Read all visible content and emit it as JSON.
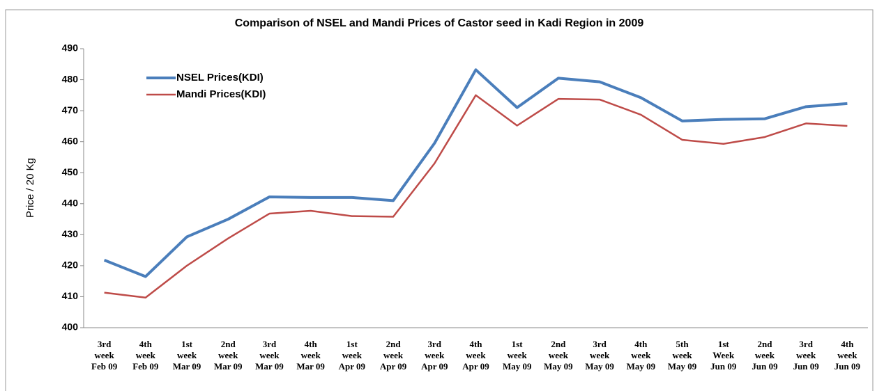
{
  "chart_data": {
    "type": "line",
    "title": "Comparison of NSEL and Mandi Prices of Castor seed in Kadi Region in 2009",
    "ylabel": "Price / 20 Kg",
    "categories": [
      [
        "3rd",
        "week",
        "Feb 09"
      ],
      [
        "4th",
        "week",
        "Feb 09"
      ],
      [
        "1st",
        "week",
        "Mar 09"
      ],
      [
        "2nd",
        "week",
        "Mar 09"
      ],
      [
        "3rd",
        "week",
        "Mar 09"
      ],
      [
        "4th",
        "week",
        "Mar 09"
      ],
      [
        "1st",
        "week",
        "Apr 09"
      ],
      [
        "2nd",
        "week",
        "Apr 09"
      ],
      [
        "3rd",
        "week",
        "Apr 09"
      ],
      [
        "4th",
        "week",
        "Apr 09"
      ],
      [
        "1st",
        "week",
        "May 09"
      ],
      [
        "2nd",
        "week",
        "May 09"
      ],
      [
        "3rd",
        "week",
        "May 09"
      ],
      [
        "4th",
        "week",
        "May 09"
      ],
      [
        "5th",
        "week",
        "May 09"
      ],
      [
        "1st",
        "Week",
        "Jun 09"
      ],
      [
        "2nd",
        "week",
        "Jun 09"
      ],
      [
        "3rd",
        "week",
        "Jun 09"
      ],
      [
        "4th",
        "week",
        "Jun 09"
      ]
    ],
    "series": [
      {
        "name": "NSEL Prices(KDI)",
        "color": "#4a7ebb",
        "values": [
          421.8,
          416.5,
          429.3,
          435,
          442.2,
          442,
          442,
          441,
          459.5,
          483.2,
          471,
          480.5,
          479.3,
          474.2,
          466.7,
          467.2,
          467.4,
          471.3,
          472.3
        ]
      },
      {
        "name": "Mandi Prices(KDI)",
        "color": "#be4b48",
        "values": [
          411.3,
          409.7,
          420,
          428.8,
          436.8,
          437.7,
          436,
          435.8,
          453,
          475,
          465.2,
          473.8,
          473.6,
          468.7,
          460.6,
          459.3,
          461.5,
          465.9,
          465.1
        ]
      }
    ],
    "ylim": [
      400,
      490
    ],
    "yticks": [
      400,
      410,
      420,
      430,
      440,
      450,
      460,
      470,
      480,
      490
    ],
    "legend": "upper left",
    "grid": false
  }
}
